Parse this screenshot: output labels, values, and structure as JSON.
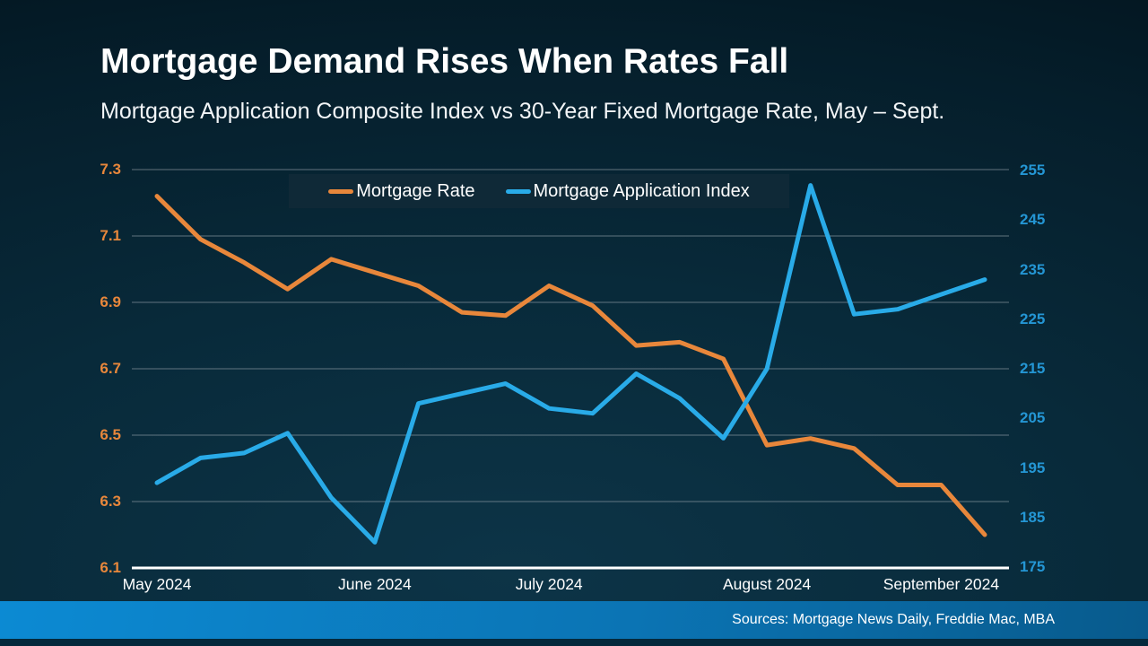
{
  "page": {
    "title": "Mortgage Demand Rises When Rates Fall",
    "subtitle": "Mortgage Application Composite Index vs 30-Year Fixed Mortgage Rate, May – Sept.",
    "source": "Sources: Mortgage News Daily, Freddie Mac, MBA"
  },
  "legend": {
    "items": [
      {
        "label": "Mortgage Rate",
        "color": "#e8873b"
      },
      {
        "label": "Mortgage Application Index",
        "color": "#29abe8"
      }
    ]
  },
  "colors": {
    "bg_center": "#0d3447",
    "bg_mid": "#082a3a",
    "bg_edge": "#051e2b",
    "bg_corner": "#03151f",
    "title_text": "#ffffff",
    "subtitle_text": "#f2f5f7",
    "left_axis_text": "#e8873b",
    "right_axis_text": "#2496d4",
    "x_axis_text": "#ffffff",
    "gridline": "#98a3ab",
    "axis_line": "#ffffff",
    "legend_bg": "#0f2937",
    "footer_left": "#0c8ad3",
    "footer_mid": "#0b74b4",
    "footer_right": "#085a8c",
    "footer_strip": "#04293c",
    "source_text": "#ffffff"
  },
  "chart_data": {
    "type": "line",
    "title": "Mortgage Demand Rises When Rates Fall",
    "subtitle": "Mortgage Application Composite Index vs 30-Year Fixed Mortgage Rate, May – Sept.",
    "x_unit": "weekly observations, May 2024 – September 2024",
    "x_count": 20,
    "grid": true,
    "legend_position": "top",
    "month_ticks": [
      {
        "label": "May 2024",
        "week_index": 0
      },
      {
        "label": "June 2024",
        "week_index": 5
      },
      {
        "label": "July 2024",
        "week_index": 9
      },
      {
        "label": "August 2024",
        "week_index": 14
      },
      {
        "label": "September 2024",
        "week_index": 18
      }
    ],
    "left_axis": {
      "min": 6.1,
      "max": 7.3,
      "ticks": [
        7.3,
        7.1,
        6.9,
        6.7,
        6.5,
        6.3,
        6.1
      ]
    },
    "right_axis": {
      "min": 175,
      "max": 255,
      "ticks": [
        255,
        245,
        235,
        225,
        215,
        205,
        195,
        185,
        175
      ]
    },
    "series": [
      {
        "name": "Mortgage Rate",
        "axis": "left",
        "color": "#e8873b",
        "values": [
          7.22,
          7.09,
          7.02,
          6.94,
          7.03,
          6.99,
          6.95,
          6.87,
          6.86,
          6.95,
          6.89,
          6.77,
          6.78,
          6.73,
          6.47,
          6.49,
          6.46,
          6.35,
          6.35,
          6.2
        ]
      },
      {
        "name": "Mortgage Application Index",
        "axis": "right",
        "color": "#29abe8",
        "values": [
          192,
          197,
          198,
          202,
          189,
          180,
          208,
          210,
          212,
          207,
          206,
          214,
          209,
          201,
          215,
          252,
          226,
          227,
          230,
          233
        ]
      }
    ]
  }
}
